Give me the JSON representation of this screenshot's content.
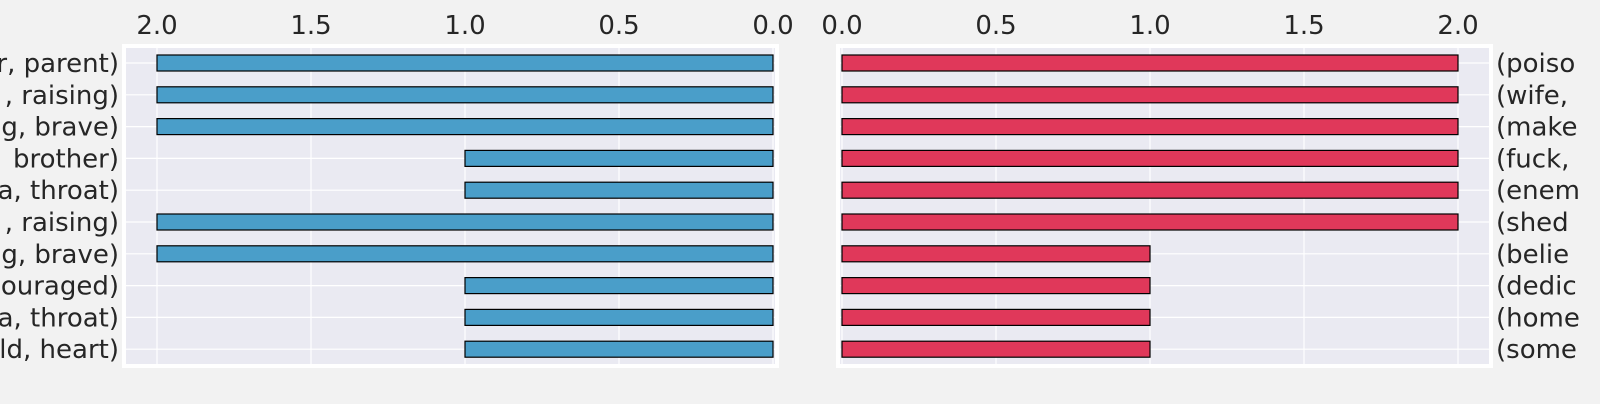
{
  "chart_data": [
    {
      "type": "bar",
      "orientation": "horizontal",
      "x_direction": "reversed",
      "categories": [
        "r, parent)",
        ", raising)",
        "g, brave)",
        " brother)",
        "a, throat)",
        ", raising)",
        "g, brave)",
        "ouraged)",
        "a, throat)",
        "ld, heart)"
      ],
      "values": [
        2,
        2,
        2,
        1,
        1,
        2,
        2,
        1,
        1,
        1
      ],
      "xlim": [
        2.0,
        0.0
      ],
      "xticks": [
        "2.0",
        "1.5",
        "1.0",
        "0.5",
        "0.0"
      ],
      "tick_position": "top",
      "label_side": "left",
      "grid": true,
      "bar_color": "#4a9ec9"
    },
    {
      "type": "bar",
      "orientation": "horizontal",
      "x_direction": "normal",
      "categories": [
        "(poiso",
        "(wife,",
        "(make",
        "(fuck,",
        "(enem",
        "(shed",
        "(belie",
        "(dedic",
        "(home",
        "(some"
      ],
      "values": [
        2,
        2,
        2,
        2,
        2,
        2,
        1,
        1,
        1,
        1
      ],
      "xlim": [
        0.0,
        2.0
      ],
      "xticks": [
        "0.0",
        "0.5",
        "1.0",
        "1.5",
        "2.0"
      ],
      "tick_position": "top",
      "label_side": "right",
      "grid": true,
      "bar_color": "#e0385a"
    }
  ],
  "colors": {
    "page_background": "#f2f2f2",
    "plot_background": "#eaeaf2",
    "grid": "#ffffff",
    "bar_edge": "#000000",
    "text": "#262626"
  }
}
